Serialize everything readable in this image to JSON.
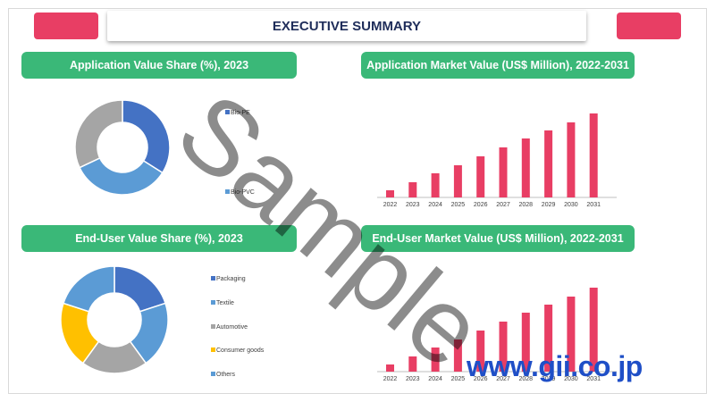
{
  "header": {
    "title": "EXECUTIVE SUMMARY"
  },
  "colors": {
    "accent_red": "#e83e64",
    "pill_green": "#3ab878",
    "title_navy": "#1f2d5a",
    "donut": [
      "#4472c4",
      "#5b9bd5",
      "#a5a5a5",
      "#ffc000"
    ]
  },
  "panels": {
    "p1": {
      "title": "Application Value Share (%), 2023"
    },
    "p2": {
      "title": "Application Market Value (US$ Million), 2022-2031"
    },
    "p3": {
      "title": "End-User Value Share (%), 2023"
    },
    "p4": {
      "title": "End-User Market Value (US$ Million), 2022-2031"
    }
  },
  "watermark": {
    "text": "Sample",
    "url": "www.gii.co.jp"
  },
  "chart_data": [
    {
      "type": "pie",
      "title": "Application Value Share (%), 2023",
      "legend": [
        "Bio-PE",
        "Bio-PVC"
      ],
      "slices": [
        {
          "label": "Bio-PE",
          "value": 34,
          "color": "#4472c4"
        },
        {
          "label": "Bio-PVC",
          "value": 34,
          "color": "#5b9bd5"
        },
        {
          "label": "",
          "value": 32,
          "color": "#a5a5a5"
        }
      ],
      "donut": true
    },
    {
      "type": "bar",
      "title": "Application Market Value (US$ Million), 2022-2031",
      "categories": [
        "2022",
        "2023",
        "2024",
        "2025",
        "2026",
        "2027",
        "2028",
        "2029",
        "2030",
        "2031"
      ],
      "values": [
        8,
        17,
        27,
        36,
        46,
        56,
        66,
        75,
        84,
        94
      ],
      "ylim": [
        0,
        100
      ],
      "color": "#e83e64"
    },
    {
      "type": "pie",
      "title": "End-User Value Share (%), 2023",
      "legend": [
        "Packaging",
        "Textile",
        "Automotive",
        "Consumer goods",
        "Others"
      ],
      "slices": [
        {
          "label": "Packaging",
          "value": 20,
          "color": "#4472c4"
        },
        {
          "label": "Textile",
          "value": 20,
          "color": "#5b9bd5"
        },
        {
          "label": "Automotive",
          "value": 20,
          "color": "#a5a5a5"
        },
        {
          "label": "Consumer goods",
          "value": 20,
          "color": "#ffc000"
        },
        {
          "label": "Others",
          "value": 20,
          "color": "#5b9bd5"
        }
      ],
      "donut": true
    },
    {
      "type": "bar",
      "title": "End-User Market Value (US$ Million), 2022-2031",
      "categories": [
        "2022",
        "2023",
        "2024",
        "2025",
        "2026",
        "2027",
        "2028",
        "2029",
        "2030",
        "2031"
      ],
      "values": [
        8,
        17,
        27,
        36,
        46,
        56,
        66,
        75,
        84,
        94
      ],
      "ylim": [
        0,
        100
      ],
      "color": "#e83e64"
    }
  ]
}
